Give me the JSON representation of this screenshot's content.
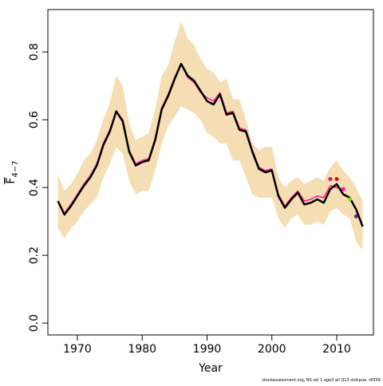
{
  "chart_data": {
    "type": "line",
    "xlabel": "Year",
    "ylabel": {
      "text": "F",
      "subscript": "4−7"
    },
    "footnote": "stockassessment.org, NS sel 1 age3 all Q13 oldcpue, r6558",
    "xlim": [
      1965.45,
      2015.66
    ],
    "ylim": [
      -0.035,
      0.925
    ],
    "xticks": [
      1970,
      1980,
      1990,
      2000,
      2010
    ],
    "yticks": [
      {
        "value": 0,
        "label": "0.0"
      },
      0.2,
      0.4,
      0.6,
      0.8
    ],
    "x": [
      1967,
      1968,
      1969,
      1970,
      1971,
      1972,
      1973,
      1974,
      1975,
      1976,
      1977,
      1978,
      1979,
      1980,
      1981,
      1982,
      1983,
      1984,
      1985,
      1986,
      1987,
      1988,
      1989,
      1990,
      1991,
      1992,
      1993,
      1994,
      1995,
      1996,
      1997,
      1998,
      1999,
      2000,
      2001,
      2002,
      2003,
      2004,
      2005,
      2006,
      2007,
      2008,
      2009,
      2010,
      2011,
      2012,
      2013,
      2014
    ],
    "band": {
      "color": "#f5deb3",
      "upper": [
        0.44,
        0.39,
        0.41,
        0.44,
        0.48,
        0.5,
        0.54,
        0.6,
        0.65,
        0.73,
        0.7,
        0.59,
        0.54,
        0.55,
        0.56,
        0.63,
        0.73,
        0.76,
        0.83,
        0.89,
        0.84,
        0.82,
        0.78,
        0.75,
        0.74,
        0.71,
        0.72,
        0.66,
        0.66,
        0.6,
        0.53,
        0.51,
        0.52,
        0.52,
        0.43,
        0.4,
        0.42,
        0.43,
        0.41,
        0.42,
        0.43,
        0.42,
        0.46,
        0.48,
        0.45,
        0.43,
        0.4,
        0.36
      ],
      "lower": [
        0.28,
        0.25,
        0.28,
        0.3,
        0.33,
        0.35,
        0.37,
        0.43,
        0.47,
        0.52,
        0.5,
        0.42,
        0.38,
        0.39,
        0.39,
        0.45,
        0.53,
        0.58,
        0.61,
        0.64,
        0.63,
        0.62,
        0.6,
        0.56,
        0.55,
        0.53,
        0.53,
        0.48,
        0.48,
        0.43,
        0.38,
        0.37,
        0.37,
        0.37,
        0.31,
        0.28,
        0.31,
        0.32,
        0.29,
        0.29,
        0.3,
        0.29,
        0.33,
        0.34,
        0.32,
        0.31,
        0.24,
        0.215
      ]
    },
    "series": [
      {
        "color": "#ff1493",
        "width": 1.5,
        "values": [
          0.36,
          0.325,
          0.35,
          0.38,
          0.41,
          0.435,
          0.47,
          0.53,
          0.57,
          0.625,
          0.6,
          0.51,
          0.47,
          0.48,
          0.485,
          0.545,
          0.635,
          0.675,
          0.725,
          0.765,
          0.725,
          0.71,
          0.68,
          0.665,
          0.655,
          0.68,
          0.62,
          0.625,
          0.575,
          0.57,
          0.51,
          0.46,
          0.45,
          0.455,
          0.38,
          0.345,
          0.37,
          0.39,
          0.36,
          0.365,
          0.375,
          0.37,
          0.405,
          0.4,
          0.395,
          null,
          null,
          null
        ]
      },
      {
        "color": "#000000",
        "width": 2.5,
        "values": [
          0.36,
          0.32,
          0.345,
          0.375,
          0.405,
          0.43,
          0.465,
          0.525,
          0.565,
          0.625,
          0.595,
          0.505,
          0.465,
          0.475,
          0.48,
          0.54,
          0.63,
          0.67,
          0.72,
          0.765,
          0.73,
          0.715,
          0.685,
          0.655,
          0.645,
          0.675,
          0.615,
          0.62,
          0.57,
          0.565,
          0.505,
          0.455,
          0.445,
          0.45,
          0.375,
          0.34,
          0.365,
          0.385,
          0.35,
          0.355,
          0.365,
          0.355,
          0.395,
          0.41,
          0.38,
          0.37,
          0.335,
          0.285
        ]
      }
    ],
    "points": {
      "x": [
        2009,
        2010,
        2011,
        2012,
        2013
      ],
      "values": [
        0.425,
        0.425,
        0.395,
        0.365,
        0.315
      ],
      "colors": [
        "#e0115f",
        "#d01010",
        "#ff1493",
        "#7fe020",
        "#6a1b9a"
      ]
    }
  }
}
